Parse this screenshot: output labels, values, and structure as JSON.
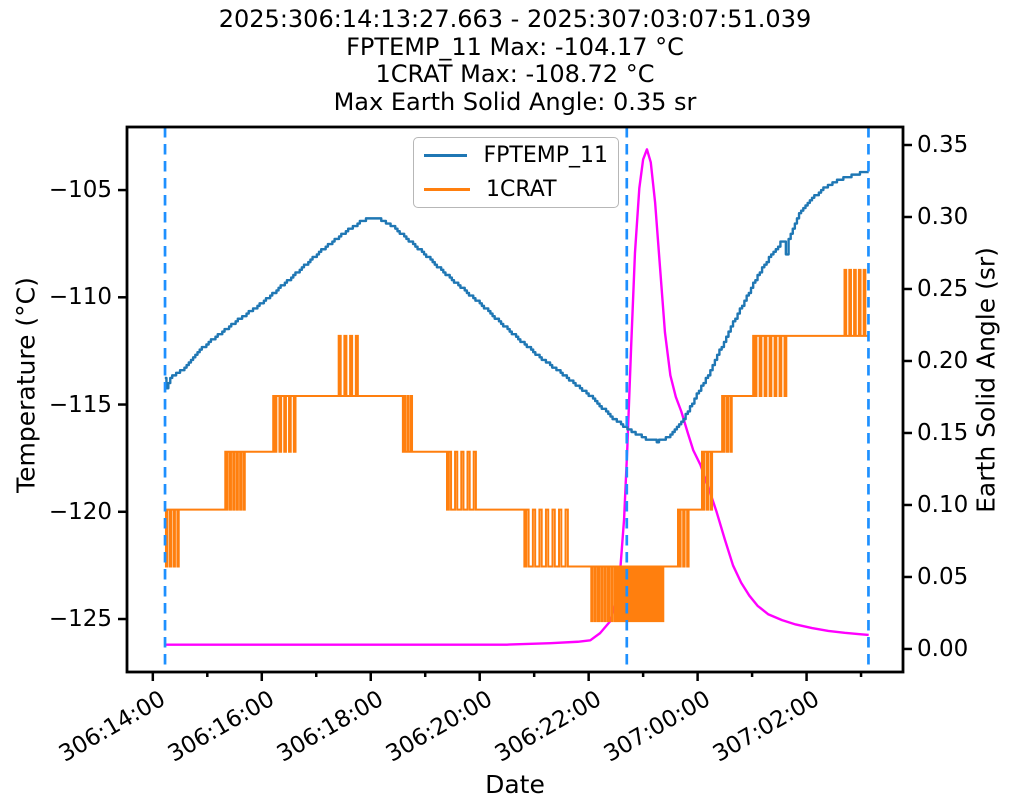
{
  "chart_data": {
    "type": "line",
    "title_lines": [
      "2025:306:14:13:27.663 - 2025:307:03:07:51.039",
      "FPTEMP_11 Max: -104.17 °C",
      "1CRAT Max: -108.72 °C",
      "Max Earth Solid Angle: 0.35 sr"
    ],
    "xlabel": "Date",
    "ylabel_left": "Temperature (°C)",
    "ylabel_right": "Earth Solid Angle (sr)",
    "x_unit": "hours since 2025:306:14:00:00",
    "xlim": [
      -0.474,
      13.77
    ],
    "ylim_temp": [
      -102.06,
      -127.47
    ],
    "ylim_angle": [
      0.3625,
      -0.016
    ],
    "grid": false,
    "legend_position": "upper center-left",
    "x_major_ticks": [
      {
        "t": 0,
        "label": "306:14:00"
      },
      {
        "t": 2,
        "label": "306:16:00"
      },
      {
        "t": 4,
        "label": "306:18:00"
      },
      {
        "t": 6,
        "label": "306:20:00"
      },
      {
        "t": 8,
        "label": "306:22:00"
      },
      {
        "t": 10,
        "label": "307:00:00"
      },
      {
        "t": 12,
        "label": "307:02:00"
      }
    ],
    "x_minor_ticks": [
      1,
      3,
      5,
      7,
      9,
      11,
      13
    ],
    "temp_ticks": [
      {
        "v": -105,
        "label": "−105"
      },
      {
        "v": -110,
        "label": "−110"
      },
      {
        "v": -115,
        "label": "−115"
      },
      {
        "v": -120,
        "label": "−120"
      },
      {
        "v": -125,
        "label": "−125"
      }
    ],
    "angle_ticks": [
      {
        "v": 0.0,
        "label": "0.00"
      },
      {
        "v": 0.05,
        "label": "0.05"
      },
      {
        "v": 0.1,
        "label": "0.10"
      },
      {
        "v": 0.15,
        "label": "0.15"
      },
      {
        "v": 0.2,
        "label": "0.20"
      },
      {
        "v": 0.25,
        "label": "0.25"
      },
      {
        "v": 0.3,
        "label": "0.30"
      },
      {
        "v": 0.35,
        "label": "0.35"
      }
    ],
    "event_lines": {
      "color": "#1e90ff",
      "style": "dashed",
      "times": [
        0.224,
        8.7,
        13.136
      ]
    },
    "series": [
      {
        "name": "FPTEMP_11",
        "color": "#1f77b4",
        "axis": "temp",
        "style": "quantized-step",
        "quantum": 0.12,
        "max": -104.17,
        "points": [
          [
            0.22,
            -113.75
          ],
          [
            0.25,
            -114.25
          ],
          [
            0.32,
            -113.75
          ],
          [
            0.5,
            -113.45
          ],
          [
            0.9,
            -112.35
          ],
          [
            1.4,
            -111.35
          ],
          [
            2.0,
            -110.25
          ],
          [
            2.5,
            -109.15
          ],
          [
            3.05,
            -107.9
          ],
          [
            3.5,
            -107.0
          ],
          [
            3.8,
            -106.5
          ],
          [
            3.95,
            -106.3
          ],
          [
            4.15,
            -106.38
          ],
          [
            4.45,
            -106.8
          ],
          [
            4.9,
            -107.8
          ],
          [
            5.45,
            -109.1
          ],
          [
            6.0,
            -110.3
          ],
          [
            6.55,
            -111.6
          ],
          [
            7.1,
            -112.8
          ],
          [
            7.6,
            -113.75
          ],
          [
            8.0,
            -114.55
          ],
          [
            8.4,
            -115.55
          ],
          [
            8.75,
            -116.2
          ],
          [
            9.05,
            -116.6
          ],
          [
            9.25,
            -116.72
          ],
          [
            9.5,
            -116.45
          ],
          [
            9.7,
            -115.85
          ],
          [
            9.9,
            -114.9
          ],
          [
            10.15,
            -113.8
          ],
          [
            10.4,
            -112.5
          ],
          [
            10.65,
            -111.15
          ],
          [
            10.9,
            -109.95
          ],
          [
            11.1,
            -108.95
          ],
          [
            11.35,
            -108.0
          ],
          [
            11.52,
            -107.45
          ],
          [
            11.58,
            -107.35
          ],
          [
            11.62,
            -107.95
          ],
          [
            11.67,
            -107.25
          ],
          [
            11.9,
            -105.9
          ],
          [
            12.1,
            -105.35
          ],
          [
            12.35,
            -104.85
          ],
          [
            12.6,
            -104.5
          ],
          [
            12.9,
            -104.25
          ],
          [
            13.14,
            -104.12
          ]
        ]
      },
      {
        "name": "1CRAT",
        "color": "#ff7f0e",
        "axis": "temp",
        "style": "telemetry-steps",
        "max": -108.72,
        "levels": [
          -108.72,
          -111.8,
          -114.6,
          -117.2,
          -119.9,
          -122.55,
          -125.1
        ],
        "segments": [
          [
            0.22,
            0.5,
            -119.9,
            -122.55,
            4
          ],
          [
            0.5,
            1.33,
            -119.9,
            null,
            0
          ],
          [
            1.33,
            1.71,
            -117.2,
            -119.9,
            6
          ],
          [
            1.71,
            2.21,
            -117.2,
            null,
            0
          ],
          [
            2.21,
            2.65,
            -114.6,
            -117.2,
            5
          ],
          [
            2.65,
            3.38,
            -114.6,
            null,
            0
          ],
          [
            3.38,
            3.8,
            -114.6,
            -111.8,
            4
          ],
          [
            3.8,
            4.59,
            -114.6,
            null,
            0
          ],
          [
            4.59,
            4.78,
            -117.2,
            -114.6,
            3
          ],
          [
            4.78,
            5.4,
            -117.2,
            null,
            0
          ],
          [
            5.4,
            5.97,
            -119.9,
            -117.2,
            5
          ],
          [
            5.97,
            6.82,
            -119.9,
            null,
            0
          ],
          [
            6.82,
            7.66,
            -122.55,
            -119.9,
            7
          ],
          [
            7.66,
            8.03,
            -122.55,
            null,
            0
          ],
          [
            8.03,
            8.52,
            -122.55,
            -125.1,
            8
          ],
          [
            8.52,
            9.37,
            -125.1,
            -122.55,
            34
          ],
          [
            9.37,
            9.64,
            -122.55,
            null,
            0
          ],
          [
            9.64,
            9.86,
            -119.9,
            -122.55,
            3
          ],
          [
            9.86,
            10.08,
            -119.9,
            null,
            0
          ],
          [
            10.08,
            10.29,
            -117.2,
            -119.9,
            3
          ],
          [
            10.29,
            10.45,
            -117.2,
            null,
            0
          ],
          [
            10.45,
            10.65,
            -114.6,
            -117.2,
            3
          ],
          [
            10.65,
            11.02,
            -114.6,
            null,
            0
          ],
          [
            11.02,
            11.66,
            -111.8,
            -114.6,
            7
          ],
          [
            11.66,
            12.67,
            -111.8,
            null,
            0
          ],
          [
            12.67,
            13.11,
            -111.8,
            -108.72,
            5
          ],
          [
            13.11,
            13.14,
            -111.8,
            null,
            0
          ]
        ]
      },
      {
        "name": "Earth Solid Angle",
        "color": "#ff00ff",
        "axis": "angle",
        "style": "line",
        "in_legend": false,
        "max": 0.35,
        "points": [
          [
            0.22,
            0.003
          ],
          [
            4.0,
            0.003
          ],
          [
            6.5,
            0.003
          ],
          [
            7.3,
            0.004
          ],
          [
            7.8,
            0.005
          ],
          [
            8.03,
            0.006
          ],
          [
            8.21,
            0.011
          ],
          [
            8.39,
            0.019
          ],
          [
            8.5,
            0.032
          ],
          [
            8.58,
            0.055
          ],
          [
            8.65,
            0.09
          ],
          [
            8.71,
            0.14
          ],
          [
            8.78,
            0.21
          ],
          [
            8.85,
            0.275
          ],
          [
            8.93,
            0.32
          ],
          [
            9.0,
            0.34
          ],
          [
            9.07,
            0.347
          ],
          [
            9.14,
            0.338
          ],
          [
            9.22,
            0.31
          ],
          [
            9.31,
            0.265
          ],
          [
            9.4,
            0.22
          ],
          [
            9.5,
            0.19
          ],
          [
            9.6,
            0.175
          ],
          [
            9.7,
            0.165
          ],
          [
            9.82,
            0.15
          ],
          [
            9.92,
            0.138
          ],
          [
            10.05,
            0.128
          ],
          [
            10.2,
            0.112
          ],
          [
            10.35,
            0.095
          ],
          [
            10.5,
            0.076
          ],
          [
            10.65,
            0.058
          ],
          [
            10.8,
            0.046
          ],
          [
            10.95,
            0.037
          ],
          [
            11.1,
            0.03
          ],
          [
            11.3,
            0.024
          ],
          [
            11.55,
            0.02
          ],
          [
            11.8,
            0.017
          ],
          [
            12.1,
            0.0145
          ],
          [
            12.4,
            0.0125
          ],
          [
            12.7,
            0.0112
          ],
          [
            13.0,
            0.0102
          ],
          [
            13.14,
            0.0097
          ]
        ]
      }
    ]
  }
}
